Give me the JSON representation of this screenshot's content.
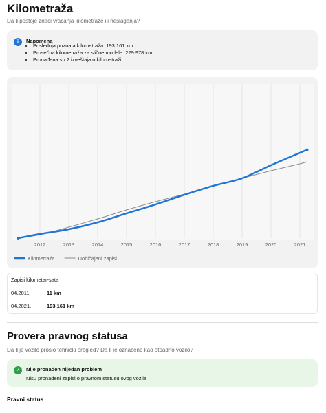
{
  "header": {
    "title": "Kilometraža",
    "subtitle": "Da li postoje znaci vraćanja kilometraže ili neslaganja?"
  },
  "note": {
    "title": "Napomena",
    "items": [
      "Poslednja poznata kilometraža: 193.161 km",
      "Prosečna kilometraža za slične modele: 229.978 km",
      "Pronađena su 2 izveštaja o kilometraži"
    ]
  },
  "chart_data": {
    "type": "line",
    "x": [
      2011.25,
      2012,
      2013,
      2014,
      2015,
      2016,
      2017,
      2018,
      2019,
      2020,
      2021,
      2021.25
    ],
    "series": [
      {
        "name": "Kilometraža",
        "color": "#1f74d6",
        "values": [
          11,
          9000,
          19600,
          34600,
          54200,
          73700,
          94800,
          114400,
          130900,
          159500,
          186600,
          193161
        ]
      },
      {
        "name": "Uobičajeni zapisi",
        "color": "#8a8a8a",
        "values": [
          11,
          7500,
          24100,
          42100,
          61700,
          79700,
          96300,
          114400,
          130900,
          147400,
          162500,
          167000
        ]
      }
    ],
    "xlim": [
      2011,
      2021.5
    ],
    "xticks": [
      2012,
      2013,
      2014,
      2015,
      2016,
      2017,
      2018,
      2019,
      2020,
      2021
    ],
    "ylim": [
      0,
      325000
    ],
    "legend": "bottom-left"
  },
  "table": {
    "title": "Zapisi kilometar-sata",
    "rows": [
      [
        "04.2011.",
        "11 km"
      ],
      [
        "04.2021.",
        "193.161 km"
      ]
    ]
  },
  "legal": {
    "title": "Provera pravnog statusa",
    "subtitle": "Da li je vozilo prošlo tehnički pregled? Da li je označeno kao otpadno vozilo?",
    "status_title": "Nije pronađen nijedan problem",
    "status_text": "Nisu pronađeni zapisi o pravnom statusu ovog vozila",
    "section": "Pravni status"
  }
}
